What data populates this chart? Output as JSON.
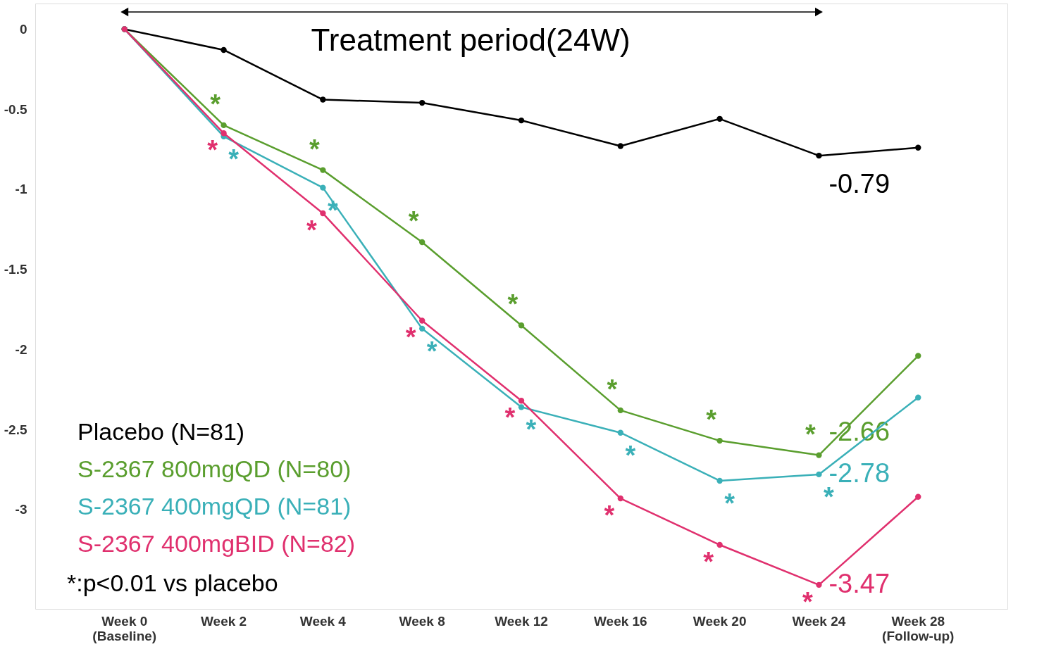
{
  "chart_data": {
    "type": "line",
    "categories": [
      "Week 0\n(Baseline)",
      "Week 2",
      "Week 4",
      "Week 8",
      "Week 12",
      "Week 16",
      "Week 20",
      "Week 24",
      "Week 28\n(Follow-up)"
    ],
    "series": [
      {
        "name": "Placebo (N=81)",
        "color": "#000000",
        "values": [
          0,
          -0.13,
          -0.44,
          -0.46,
          -0.57,
          -0.73,
          -0.56,
          -0.79,
          -0.74
        ],
        "value_labels": [
          null,
          null,
          null,
          null,
          null,
          null,
          null,
          "-0.79",
          null
        ]
      },
      {
        "name": "S-2367 800mgQD (N=80)",
        "color": "#5a9e2e",
        "values": [
          0,
          -0.6,
          -0.88,
          -1.33,
          -1.85,
          -2.38,
          -2.57,
          -2.66,
          -2.04
        ],
        "value_labels": [
          null,
          null,
          null,
          null,
          null,
          null,
          null,
          "-2.66",
          null
        ]
      },
      {
        "name": "S-2367 400mgQD (N=81)",
        "color": "#3ab0b8",
        "values": [
          0,
          -0.67,
          -0.99,
          -1.87,
          -2.36,
          -2.52,
          -2.82,
          -2.78,
          -2.3
        ],
        "value_labels": [
          null,
          null,
          null,
          null,
          null,
          null,
          null,
          "-2.78",
          null
        ]
      },
      {
        "name": "S-2367 400mgBID (N=82)",
        "color": "#e0306e",
        "values": [
          0,
          -0.65,
          -1.15,
          -1.82,
          -2.32,
          -2.93,
          -3.22,
          -3.47,
          -2.92
        ],
        "value_labels": [
          null,
          null,
          null,
          null,
          null,
          null,
          null,
          "-3.47",
          null
        ]
      }
    ],
    "ylim": [
      -3.62,
      0.16
    ],
    "yticks": [
      0,
      -0.5,
      -1,
      -1.5,
      -2,
      -2.5,
      -3
    ],
    "grid": false,
    "legend": "bottom left",
    "marker": "circle",
    "line_style": "solid",
    "annotations": [
      "Treatment period(24W)",
      "*:p<0.01 vs placebo",
      {
        "text": "*",
        "x": "Week 2",
        "y": -0.6
      },
      {
        "text": "*",
        "x": "Week 2",
        "y": -0.67
      },
      {
        "text": "*",
        "x": "Week 2",
        "y": -0.65
      },
      {
        "text": "*",
        "x": "Week 4",
        "y": -0.88
      },
      {
        "text": "*",
        "x": "Week 4",
        "y": -0.99
      },
      {
        "text": "*",
        "x": "Week 4",
        "y": -1.15
      },
      {
        "text": "*",
        "x": "Week 8",
        "y": -1.33
      },
      {
        "text": "*",
        "x": "Week 8",
        "y": -1.87
      },
      {
        "text": "*",
        "x": "Week 8",
        "y": -1.82
      },
      {
        "text": "*",
        "x": "Week 12",
        "y": -1.85
      },
      {
        "text": "*",
        "x": "Week 12",
        "y": -2.36
      },
      {
        "text": "*",
        "x": "Week 12",
        "y": -2.32
      },
      {
        "text": "*",
        "x": "Week 16",
        "y": -2.38
      },
      {
        "text": "*",
        "x": "Week 16",
        "y": -2.52
      },
      {
        "text": "*",
        "x": "Week 16",
        "y": -2.93
      },
      {
        "text": "*",
        "x": "Week 20",
        "y": -2.57
      },
      {
        "text": "*",
        "x": "Week 20",
        "y": -2.82
      },
      {
        "text": "*",
        "x": "Week 20",
        "y": -3.22
      },
      {
        "text": "*",
        "x": "Week 24",
        "y": -2.66
      },
      {
        "text": "*",
        "x": "Week 24",
        "y": -2.78
      },
      {
        "text": "*",
        "x": "Week 24",
        "y": -3.47
      }
    ]
  }
}
